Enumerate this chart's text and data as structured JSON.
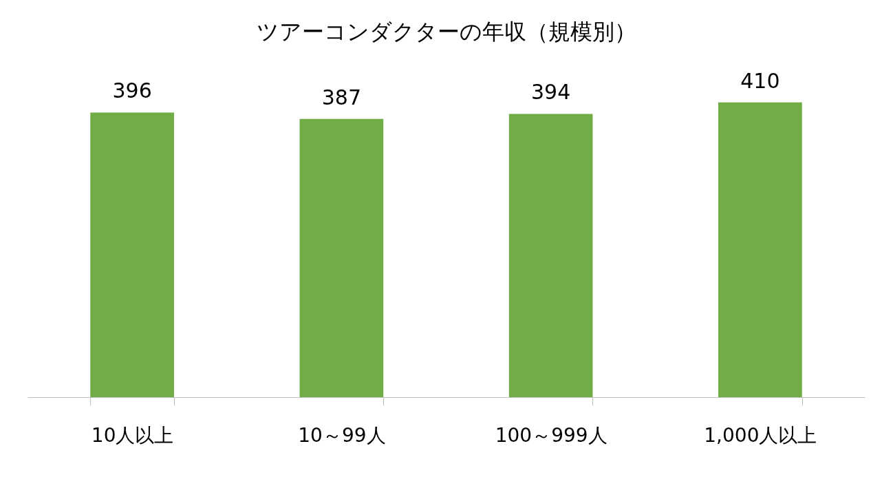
{
  "chart_data": {
    "type": "bar",
    "title": "ツアーコンダクターの年収（規模別）",
    "categories": [
      "10人以上",
      "10～99人",
      "100～999人",
      "1,000人以上"
    ],
    "values": [
      396,
      387,
      394,
      410
    ],
    "color": "#70ad47",
    "data_labels": true
  }
}
